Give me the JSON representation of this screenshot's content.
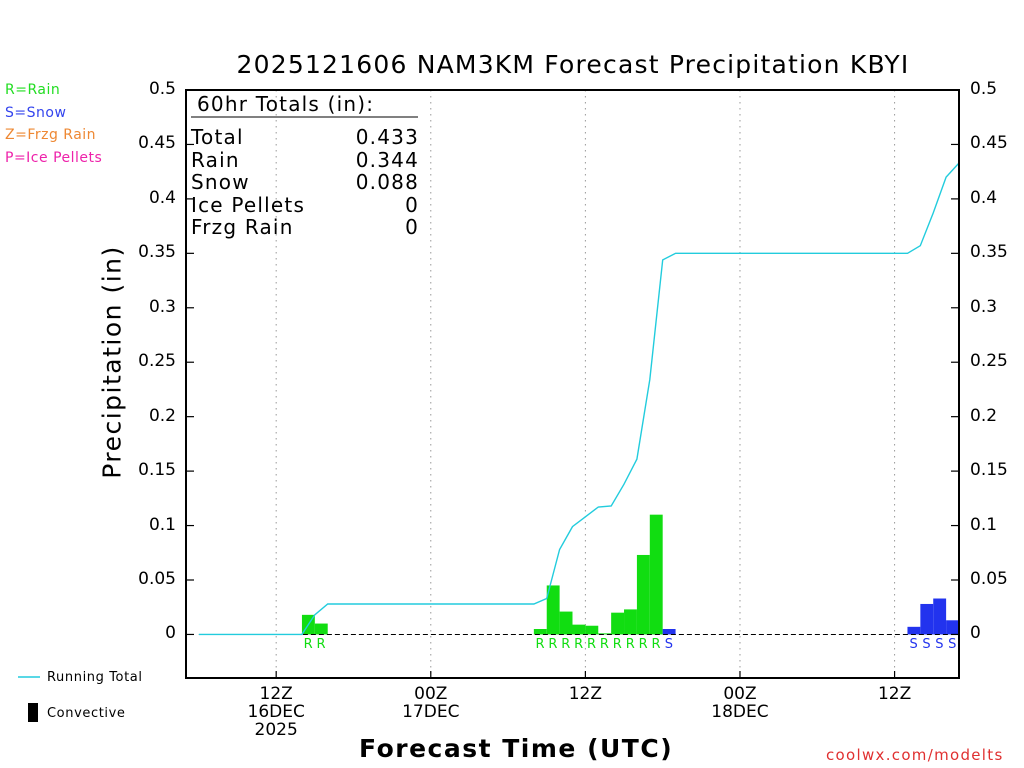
{
  "chart_data": {
    "type": "bar",
    "title": "2025121606 NAM3KM Forecast Precipitation KBYI",
    "xlabel": "Forecast Time (UTC)",
    "ylabel": "Precipitation (in)",
    "ylim": [
      -0.04,
      0.5
    ],
    "yticks": [
      0,
      0.05,
      0.1,
      0.15,
      0.2,
      0.25,
      0.3,
      0.35,
      0.4,
      0.45,
      0.5
    ],
    "ytick_labels": [
      "0",
      "0.05",
      "0.1",
      "0.15",
      "0.2",
      "0.25",
      "0.3",
      "0.35",
      "0.4",
      "0.45",
      "0.5"
    ],
    "xlim_hours": [
      -1,
      59
    ],
    "xticks": [
      {
        "hour": 6,
        "lines": [
          "12Z",
          "16DEC",
          "2025"
        ]
      },
      {
        "hour": 18,
        "lines": [
          "00Z",
          "17DEC"
        ]
      },
      {
        "hour": 30,
        "lines": [
          "12Z"
        ]
      },
      {
        "hour": 42,
        "lines": [
          "00Z",
          "18DEC"
        ]
      },
      {
        "hour": 54,
        "lines": [
          "12Z"
        ]
      }
    ],
    "grid": "vertical dotted at tick hours",
    "totals_box": {
      "heading": "60hr Totals (in):",
      "rows": [
        {
          "label": "Total",
          "value": "0.433"
        },
        {
          "label": "Rain",
          "value": "0.344"
        },
        {
          "label": "Snow",
          "value": "0.088"
        },
        {
          "label": "Ice Pellets",
          "value": "0"
        },
        {
          "label": "Frzg Rain",
          "value": "0"
        }
      ]
    },
    "ptype_legend": [
      {
        "text": "R=Rain",
        "color": "#22dd22"
      },
      {
        "text": "S=Snow",
        "color": "#3344ee"
      },
      {
        "text": "Z=Frzg Rain",
        "color": "#ee8833"
      },
      {
        "text": "P=Ice Pellets",
        "color": "#ee22aa"
      }
    ],
    "bars": [
      {
        "hour": 9,
        "value": 0.018,
        "type": "R"
      },
      {
        "hour": 10,
        "value": 0.01,
        "type": "R"
      },
      {
        "hour": 27,
        "value": 0.005,
        "type": "R"
      },
      {
        "hour": 28,
        "value": 0.045,
        "type": "R"
      },
      {
        "hour": 29,
        "value": 0.021,
        "type": "R"
      },
      {
        "hour": 30,
        "value": 0.009,
        "type": "R"
      },
      {
        "hour": 31,
        "value": 0.008,
        "type": "R"
      },
      {
        "hour": 32,
        "value": 0.001,
        "type": "R"
      },
      {
        "hour": 33,
        "value": 0.02,
        "type": "R"
      },
      {
        "hour": 34,
        "value": 0.023,
        "type": "R"
      },
      {
        "hour": 35,
        "value": 0.073,
        "type": "R"
      },
      {
        "hour": 36,
        "value": 0.11,
        "type": "R"
      },
      {
        "hour": 37,
        "value": 0.005,
        "type": "S"
      },
      {
        "hour": 56,
        "value": 0.007,
        "type": "S"
      },
      {
        "hour": 57,
        "value": 0.028,
        "type": "S"
      },
      {
        "hour": 58,
        "value": 0.033,
        "type": "S"
      },
      {
        "hour": 59,
        "value": 0.013,
        "type": "S"
      }
    ],
    "running_total": {
      "name": "Running Total",
      "points": [
        [
          0,
          0
        ],
        [
          8,
          0
        ],
        [
          9,
          0.018
        ],
        [
          10,
          0.028
        ],
        [
          26,
          0.028
        ],
        [
          27,
          0.033
        ],
        [
          28,
          0.078
        ],
        [
          29,
          0.099
        ],
        [
          30,
          0.108
        ],
        [
          31,
          0.117
        ],
        [
          32,
          0.118
        ],
        [
          33,
          0.138
        ],
        [
          34,
          0.161
        ],
        [
          35,
          0.234
        ],
        [
          36,
          0.344
        ],
        [
          37,
          0.35
        ],
        [
          55,
          0.35
        ],
        [
          56,
          0.357
        ],
        [
          57,
          0.387
        ],
        [
          58,
          0.42
        ],
        [
          59,
          0.433
        ]
      ],
      "color": "#22ccdd"
    },
    "series_legend": [
      {
        "text": "Running Total",
        "symbol": "line",
        "color": "#22ccdd"
      },
      {
        "text": "Convective",
        "symbol": "bar",
        "color": "#000000"
      }
    ],
    "colors": {
      "R": "#11dd11",
      "S": "#2233ee",
      "Z": "#ee8833",
      "P": "#ee22aa"
    }
  },
  "watermark": "coolwx.com/modelts"
}
